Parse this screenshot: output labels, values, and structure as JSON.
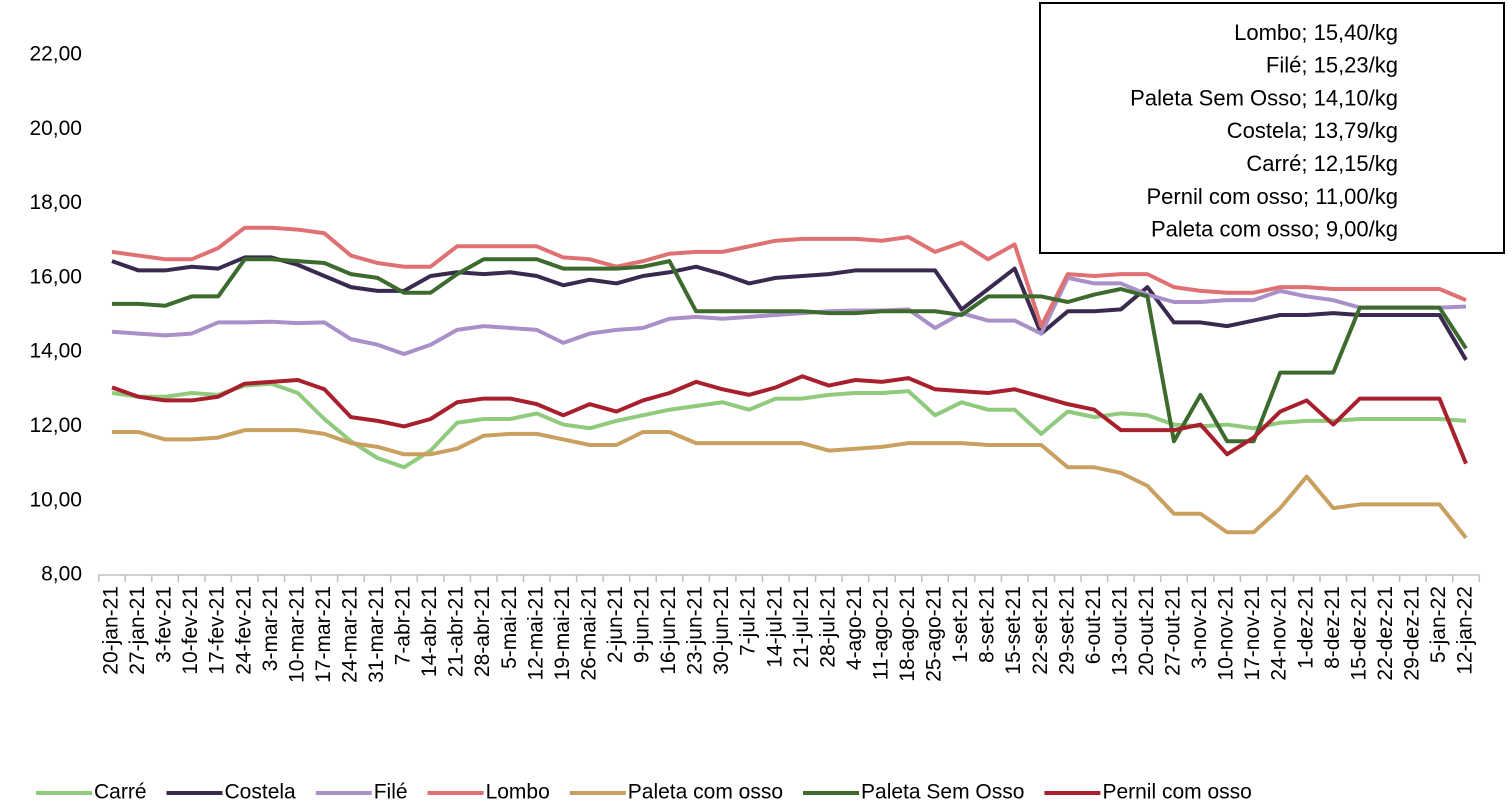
{
  "chart_data": {
    "type": "line",
    "categories": [
      "20-jan-21",
      "27-jan-21",
      "3-fev-21",
      "10-fev-21",
      "17-fev-21",
      "24-fev-21",
      "3-mar-21",
      "10-mar-21",
      "17-mar-21",
      "24-mar-21",
      "31-mar-21",
      "7-abr-21",
      "14-abr-21",
      "21-abr-21",
      "28-abr-21",
      "5-mai-21",
      "12-mai-21",
      "19-mai-21",
      "26-mai-21",
      "2-jun-21",
      "9-jun-21",
      "16-jun-21",
      "23-jun-21",
      "30-jun-21",
      "7-jul-21",
      "14-jul-21",
      "21-jul-21",
      "28-jul-21",
      "4-ago-21",
      "11-ago-21",
      "18-ago-21",
      "25-ago-21",
      "1-set-21",
      "8-set-21",
      "15-set-21",
      "22-set-21",
      "29-set-21",
      "6-out-21",
      "13-out-21",
      "20-out-21",
      "27-out-21",
      "3-nov-21",
      "10-nov-21",
      "17-nov-21",
      "24-nov-21",
      "1-dez-21",
      "8-dez-21",
      "15-dez-21",
      "22-dez-21",
      "29-dez-21",
      "5-jan-22",
      "12-jan-22"
    ],
    "series": [
      {
        "name": "Carré",
        "color": "#8fca7d",
        "values": [
          12.9,
          12.8,
          12.8,
          12.9,
          12.85,
          13.1,
          13.15,
          12.9,
          12.2,
          11.6,
          11.15,
          10.9,
          11.35,
          12.1,
          12.2,
          12.2,
          12.35,
          12.05,
          11.95,
          12.15,
          12.3,
          12.45,
          12.55,
          12.65,
          12.45,
          12.75,
          12.75,
          12.85,
          12.9,
          12.9,
          12.95,
          12.3,
          12.65,
          12.45,
          12.45,
          11.8,
          12.4,
          12.25,
          12.35,
          12.3,
          12.05,
          12.0,
          12.05,
          11.95,
          12.1,
          12.15,
          12.15,
          12.2,
          12.2,
          12.2,
          12.2,
          12.15
        ]
      },
      {
        "name": "Costela",
        "color": "#3a2a4f",
        "values": [
          16.45,
          16.2,
          16.2,
          16.3,
          16.25,
          16.55,
          16.55,
          16.35,
          16.05,
          15.75,
          15.65,
          15.65,
          16.05,
          16.15,
          16.1,
          16.15,
          16.05,
          15.8,
          15.95,
          15.85,
          16.05,
          16.15,
          16.3,
          16.1,
          15.85,
          16.0,
          16.05,
          16.1,
          16.2,
          16.2,
          16.2,
          16.2,
          15.15,
          15.7,
          16.25,
          14.5,
          15.1,
          15.1,
          15.15,
          15.75,
          14.8,
          14.8,
          14.7,
          14.85,
          15.0,
          15.0,
          15.05,
          15.0,
          15.0,
          15.0,
          15.0,
          13.79
        ]
      },
      {
        "name": "Filé",
        "color": "#a990c9",
        "values": [
          14.55,
          14.5,
          14.45,
          14.5,
          14.8,
          14.8,
          14.82,
          14.78,
          14.8,
          14.35,
          14.2,
          13.95,
          14.2,
          14.6,
          14.7,
          14.65,
          14.6,
          14.25,
          14.5,
          14.6,
          14.65,
          14.9,
          14.95,
          14.9,
          14.95,
          15.0,
          15.05,
          15.1,
          15.12,
          15.12,
          15.15,
          14.65,
          15.05,
          14.85,
          14.85,
          14.5,
          16.0,
          15.85,
          15.85,
          15.55,
          15.35,
          15.35,
          15.4,
          15.4,
          15.65,
          15.5,
          15.4,
          15.2,
          15.2,
          15.2,
          15.2,
          15.23
        ]
      },
      {
        "name": "Lombo",
        "color": "#e07173",
        "values": [
          16.7,
          16.6,
          16.5,
          16.5,
          16.8,
          17.35,
          17.35,
          17.3,
          17.2,
          16.6,
          16.4,
          16.3,
          16.3,
          16.85,
          16.85,
          16.85,
          16.85,
          16.55,
          16.5,
          16.3,
          16.45,
          16.65,
          16.7,
          16.7,
          16.85,
          17.0,
          17.05,
          17.05,
          17.05,
          17.0,
          17.1,
          16.7,
          16.95,
          16.5,
          16.9,
          14.7,
          16.1,
          16.05,
          16.1,
          16.1,
          15.75,
          15.65,
          15.6,
          15.6,
          15.75,
          15.75,
          15.7,
          15.7,
          15.7,
          15.7,
          15.7,
          15.4
        ]
      },
      {
        "name": "Paleta com osso",
        "color": "#c9a060",
        "values": [
          11.85,
          11.85,
          11.65,
          11.65,
          11.7,
          11.9,
          11.9,
          11.9,
          11.8,
          11.55,
          11.45,
          11.25,
          11.25,
          11.4,
          11.75,
          11.8,
          11.8,
          11.65,
          11.5,
          11.5,
          11.85,
          11.85,
          11.55,
          11.55,
          11.55,
          11.55,
          11.55,
          11.35,
          11.4,
          11.45,
          11.55,
          11.55,
          11.55,
          11.5,
          11.5,
          11.5,
          10.9,
          10.9,
          10.75,
          10.4,
          9.65,
          9.65,
          9.15,
          9.15,
          9.8,
          10.65,
          9.8,
          9.9,
          9.9,
          9.9,
          9.9,
          9.0
        ]
      },
      {
        "name": "Paleta Sem Osso",
        "color": "#3d6b2e",
        "values": [
          15.3,
          15.3,
          15.25,
          15.5,
          15.5,
          16.5,
          16.5,
          16.45,
          16.4,
          16.1,
          16.0,
          15.6,
          15.6,
          16.1,
          16.5,
          16.5,
          16.5,
          16.25,
          16.25,
          16.25,
          16.3,
          16.45,
          15.1,
          15.1,
          15.1,
          15.1,
          15.1,
          15.05,
          15.05,
          15.1,
          15.1,
          15.1,
          15.0,
          15.5,
          15.5,
          15.5,
          15.35,
          15.55,
          15.7,
          15.5,
          11.6,
          12.85,
          11.6,
          11.6,
          13.45,
          13.45,
          13.45,
          15.2,
          15.2,
          15.2,
          15.2,
          14.1
        ]
      },
      {
        "name": "Pernil com osso",
        "color": "#a8202e",
        "values": [
          13.05,
          12.8,
          12.7,
          12.7,
          12.8,
          13.15,
          13.2,
          13.25,
          13.0,
          12.25,
          12.15,
          12.0,
          12.2,
          12.65,
          12.75,
          12.75,
          12.6,
          12.3,
          12.6,
          12.4,
          12.7,
          12.9,
          13.2,
          13.0,
          12.85,
          13.05,
          13.35,
          13.1,
          13.25,
          13.2,
          13.3,
          13.0,
          12.95,
          12.9,
          13.0,
          12.8,
          12.6,
          12.45,
          11.9,
          11.9,
          11.9,
          12.05,
          11.25,
          11.7,
          12.4,
          12.7,
          12.05,
          12.75,
          12.75,
          12.75,
          12.75,
          11.0
        ]
      }
    ],
    "ylim": [
      8,
      22
    ],
    "yticks": [
      {
        "value": 8,
        "label": "8,00"
      },
      {
        "value": 10,
        "label": "10,00"
      },
      {
        "value": 12,
        "label": "12,00"
      },
      {
        "value": 14,
        "label": "14,00"
      },
      {
        "value": 16,
        "label": "16,00"
      },
      {
        "value": 18,
        "label": "18,00"
      },
      {
        "value": 20,
        "label": "20,00"
      },
      {
        "value": 22,
        "label": "22,00"
      }
    ],
    "grid": false,
    "legend": "bottom",
    "annotations": [
      "Lombo; 15,40/kg",
      "Filé; 15,23/kg",
      "Paleta Sem Osso; 14,10/kg",
      "Costela; 13,79/kg",
      "Carré; 12,15/kg",
      "Pernil com osso; 11,00/kg",
      "Paleta com osso; 9,00/kg"
    ]
  }
}
